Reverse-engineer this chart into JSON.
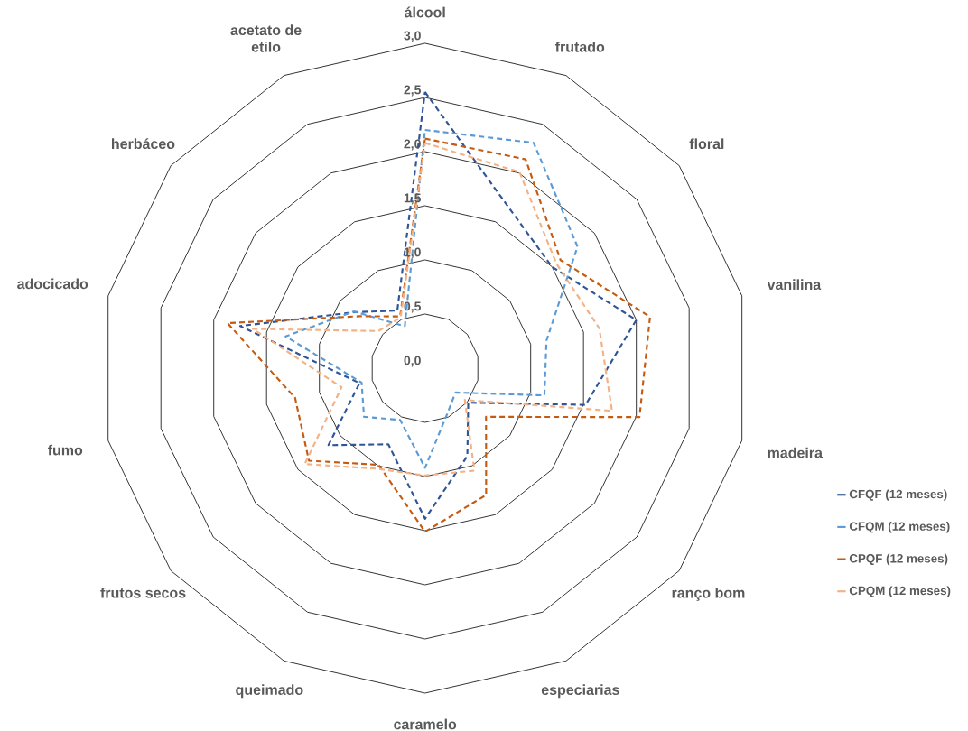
{
  "chart_data": {
    "type": "radar",
    "categories": [
      "álcool",
      "frutado",
      "floral",
      "vanilina",
      "madeira",
      "ranço bom",
      "especiarias",
      "caramelo",
      "queimado",
      "frutos secos",
      "fumo",
      "adocicado",
      "herbáceo",
      "acetato de etilo"
    ],
    "series": [
      {
        "name": "CFQF (12 meses)",
        "color": "#2f5597",
        "values": [
          2.55,
          1.7,
          1.5,
          2.0,
          1.52,
          0.51,
          0.9,
          1.39,
          0.78,
          1.14,
          0.62,
          1.75,
          0.83,
          0.59
        ]
      },
      {
        "name": "CFQM (12 meses)",
        "color": "#5b9bd5",
        "values": [
          2.2,
          2.31,
          1.8,
          1.15,
          1.13,
          0.36,
          0.47,
          0.92,
          0.53,
          0.72,
          0.6,
          1.32,
          0.84,
          0.43
        ]
      },
      {
        "name": "CPQF (12 meses)",
        "color": "#c55a11",
        "values": [
          2.12,
          2.14,
          1.6,
          2.13,
          2.03,
          0.72,
          1.3,
          1.51,
          0.99,
          1.37,
          1.23,
          1.87,
          0.77,
          0.53
        ]
      },
      {
        "name": "CPQM (12 meses)",
        "color": "#f4b183",
        "values": [
          2.08,
          2.01,
          1.55,
          1.65,
          1.77,
          0.47,
          1.05,
          0.99,
          1.03,
          1.42,
          0.79,
          1.63,
          0.55,
          0.52
        ]
      }
    ],
    "ylim": [
      0,
      3
    ],
    "yticks": [
      {
        "value": 0,
        "label": "0,0"
      },
      {
        "value": 0.5,
        "label": "0,5"
      },
      {
        "value": 1,
        "label": "1,0"
      },
      {
        "value": 1.5,
        "label": "1,5"
      },
      {
        "value": 2,
        "label": "2,0"
      },
      {
        "value": 2.5,
        "label": "2,5"
      },
      {
        "value": 3,
        "label": "3,0"
      }
    ],
    "grid": true,
    "legend": "right",
    "line_style": "dashed"
  }
}
